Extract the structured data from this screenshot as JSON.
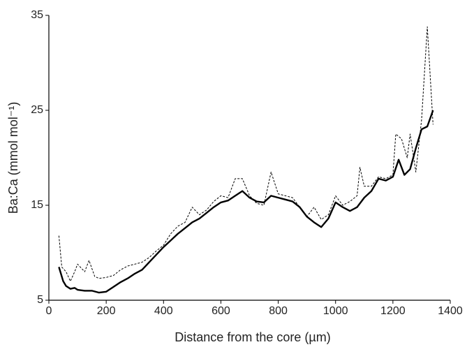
{
  "chart_data": {
    "type": "line",
    "xlabel": "Distance from the core (µm)",
    "ylabel": "Ba:Ca (mmol mol⁻¹)",
    "xlim": [
      0,
      1400
    ],
    "xticks": [
      0,
      200,
      400,
      600,
      800,
      1000,
      1200,
      1400
    ],
    "ylim": [
      5,
      35
    ],
    "yticks": [
      5,
      15,
      25,
      35
    ],
    "grid": false,
    "series": [
      {
        "color": "#000000",
        "style": "solid",
        "x": [
          35,
          50,
          60,
          75,
          90,
          100,
          125,
          150,
          175,
          200,
          225,
          250,
          275,
          300,
          325,
          350,
          375,
          400,
          425,
          450,
          475,
          500,
          525,
          550,
          575,
          600,
          625,
          650,
          675,
          700,
          725,
          750,
          775,
          800,
          825,
          850,
          875,
          900,
          925,
          950,
          975,
          1000,
          1025,
          1050,
          1075,
          1100,
          1125,
          1150,
          1175,
          1200,
          1220,
          1240,
          1260,
          1280,
          1300,
          1320,
          1340
        ],
        "values": [
          8.5,
          7.0,
          6.5,
          6.2,
          6.3,
          6.1,
          6.0,
          6.0,
          5.8,
          5.9,
          6.4,
          6.9,
          7.3,
          7.8,
          8.2,
          9.0,
          9.8,
          10.6,
          11.3,
          12.0,
          12.6,
          13.2,
          13.6,
          14.2,
          14.8,
          15.3,
          15.5,
          16.0,
          16.5,
          15.8,
          15.4,
          15.3,
          16.0,
          15.8,
          15.6,
          15.4,
          14.8,
          13.8,
          13.2,
          12.7,
          13.6,
          15.3,
          14.8,
          14.4,
          14.8,
          15.8,
          16.5,
          17.8,
          17.6,
          18.0,
          19.8,
          18.2,
          18.8,
          21.0,
          23.0,
          23.3,
          25.0
        ]
      },
      {
        "color": "#000000",
        "style": "dashed",
        "x": [
          35,
          45,
          60,
          75,
          90,
          100,
          125,
          140,
          160,
          175,
          200,
          225,
          250,
          275,
          300,
          325,
          350,
          375,
          400,
          425,
          450,
          475,
          500,
          525,
          550,
          575,
          600,
          625,
          650,
          675,
          700,
          725,
          750,
          775,
          800,
          825,
          850,
          875,
          900,
          925,
          950,
          975,
          1000,
          1025,
          1050,
          1075,
          1085,
          1100,
          1125,
          1150,
          1175,
          1200,
          1210,
          1230,
          1250,
          1260,
          1280,
          1300,
          1320,
          1340
        ],
        "values": [
          11.8,
          8.5,
          8.0,
          7.0,
          8.0,
          8.8,
          8.0,
          9.2,
          7.5,
          7.3,
          7.4,
          7.6,
          8.2,
          8.6,
          8.8,
          9.0,
          9.5,
          10.2,
          10.8,
          12.0,
          12.8,
          13.2,
          14.8,
          14.0,
          14.5,
          15.4,
          16.0,
          15.8,
          17.8,
          17.8,
          16.0,
          15.2,
          15.0,
          18.5,
          16.2,
          16.0,
          15.8,
          14.8,
          13.8,
          14.8,
          13.5,
          14.0,
          16.0,
          15.0,
          15.4,
          16.0,
          19.0,
          17.0,
          17.0,
          18.0,
          17.8,
          18.2,
          22.5,
          22.0,
          20.0,
          22.5,
          18.5,
          24.0,
          33.8,
          23.5
        ]
      }
    ]
  }
}
